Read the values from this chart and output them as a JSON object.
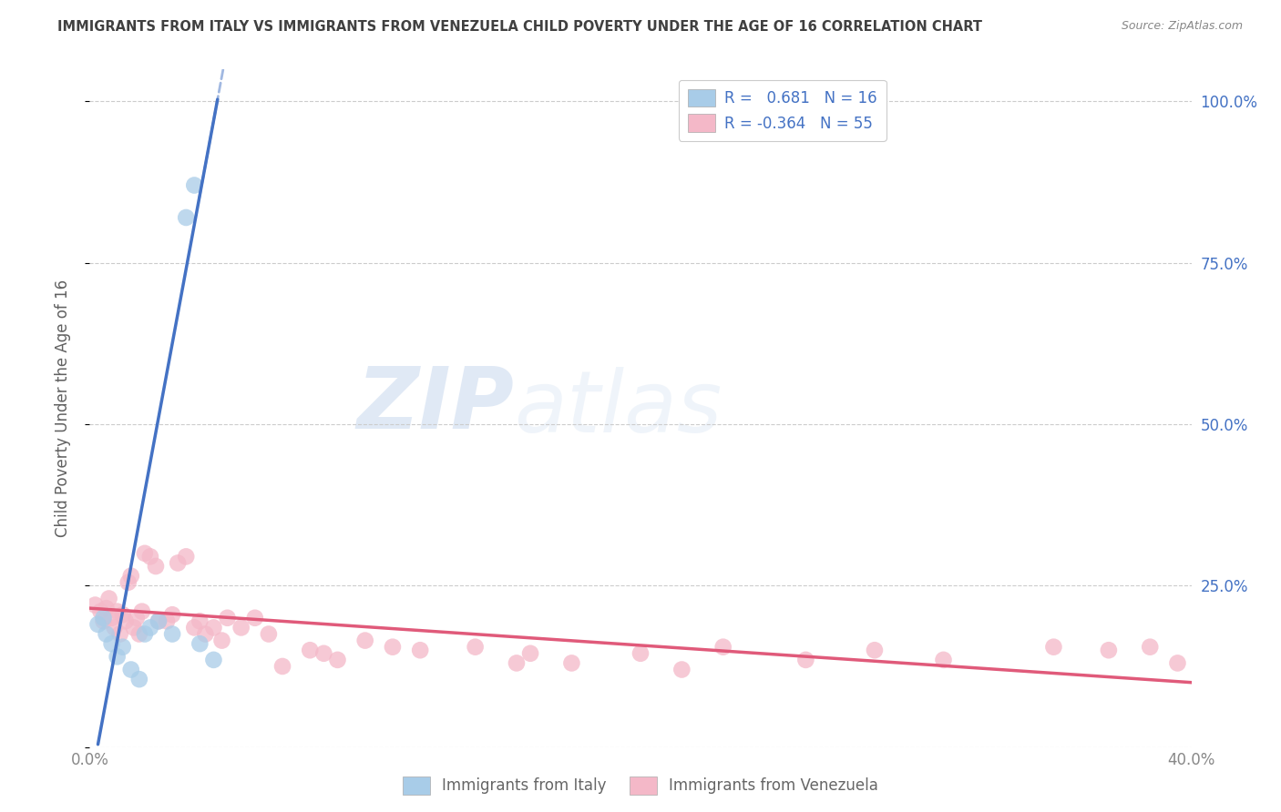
{
  "title": "IMMIGRANTS FROM ITALY VS IMMIGRANTS FROM VENEZUELA CHILD POVERTY UNDER THE AGE OF 16 CORRELATION CHART",
  "source": "Source: ZipAtlas.com",
  "ylabel": "Child Poverty Under the Age of 16",
  "y_ticks": [
    0.0,
    0.25,
    0.5,
    0.75,
    1.0
  ],
  "y_tick_labels": [
    "",
    "25.0%",
    "50.0%",
    "75.0%",
    "100.0%"
  ],
  "x_range": [
    0.0,
    0.4
  ],
  "y_range": [
    0.0,
    1.05
  ],
  "italy_color": "#a8cce8",
  "italy_color_dark": "#4472c4",
  "venezuela_color": "#f4b8c8",
  "venezuela_color_dark": "#e05a7a",
  "italy_R": 0.681,
  "italy_N": 16,
  "venezuela_R": -0.364,
  "venezuela_N": 55,
  "legend_label_italy": "Immigrants from Italy",
  "legend_label_venezuela": "Immigrants from Venezuela",
  "italy_scatter_x": [
    0.003,
    0.005,
    0.006,
    0.008,
    0.01,
    0.012,
    0.015,
    0.018,
    0.02,
    0.022,
    0.025,
    0.03,
    0.035,
    0.038,
    0.04,
    0.045
  ],
  "italy_scatter_y": [
    0.19,
    0.2,
    0.175,
    0.16,
    0.14,
    0.155,
    0.12,
    0.105,
    0.175,
    0.185,
    0.195,
    0.175,
    0.82,
    0.87,
    0.16,
    0.135
  ],
  "venezuela_scatter_x": [
    0.002,
    0.004,
    0.005,
    0.006,
    0.007,
    0.008,
    0.009,
    0.01,
    0.011,
    0.012,
    0.013,
    0.014,
    0.015,
    0.016,
    0.017,
    0.018,
    0.019,
    0.02,
    0.022,
    0.024,
    0.025,
    0.028,
    0.03,
    0.032,
    0.035,
    0.038,
    0.04,
    0.042,
    0.045,
    0.048,
    0.05,
    0.055,
    0.06,
    0.065,
    0.07,
    0.08,
    0.085,
    0.09,
    0.1,
    0.11,
    0.12,
    0.14,
    0.155,
    0.16,
    0.175,
    0.2,
    0.215,
    0.23,
    0.26,
    0.285,
    0.31,
    0.35,
    0.37,
    0.385,
    0.395
  ],
  "venezuela_scatter_y": [
    0.22,
    0.21,
    0.195,
    0.215,
    0.23,
    0.2,
    0.185,
    0.21,
    0.175,
    0.205,
    0.195,
    0.255,
    0.265,
    0.185,
    0.2,
    0.175,
    0.21,
    0.3,
    0.295,
    0.28,
    0.195,
    0.195,
    0.205,
    0.285,
    0.295,
    0.185,
    0.195,
    0.175,
    0.185,
    0.165,
    0.2,
    0.185,
    0.2,
    0.175,
    0.125,
    0.15,
    0.145,
    0.135,
    0.165,
    0.155,
    0.15,
    0.155,
    0.13,
    0.145,
    0.13,
    0.145,
    0.12,
    0.155,
    0.135,
    0.15,
    0.135,
    0.155,
    0.15,
    0.155,
    0.13
  ],
  "watermark_zip": "ZIP",
  "watermark_atlas": "atlas",
  "background_color": "#ffffff",
  "grid_color": "#cccccc",
  "legend_text_color": "#4472c4",
  "right_axis_color": "#4472c4",
  "title_color": "#404040",
  "source_color": "#888888",
  "ylabel_color": "#606060"
}
